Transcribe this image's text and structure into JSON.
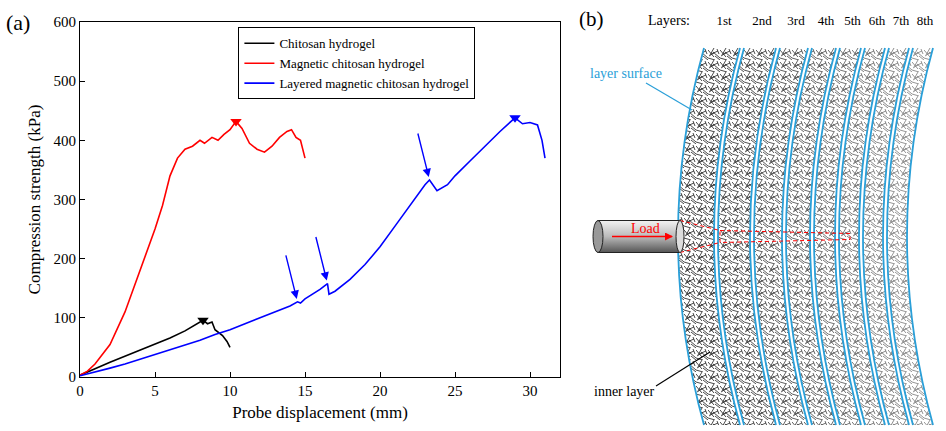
{
  "chart_data": {
    "type": "line",
    "panel_label": "(a)",
    "x_label": "Probe displacement (mm)",
    "y_label": "Compression strength (kPa)",
    "xlim": [
      0,
      32
    ],
    "xticks": [
      0,
      5,
      10,
      15,
      20,
      25,
      30
    ],
    "ylim": [
      0,
      600
    ],
    "yticks": [
      0,
      100,
      200,
      300,
      400,
      500,
      600
    ],
    "grid": false,
    "legend": "upper center",
    "series": [
      {
        "name": "Chitosan hydrogel",
        "color": "#000000",
        "marker": "triangle-down",
        "peak": [
          8.2,
          96
        ],
        "x": [
          0,
          0.5,
          1,
          2,
          3,
          4,
          5,
          6,
          7,
          7.5,
          8,
          8.2,
          8.5,
          8.8,
          9,
          9.5,
          9.8,
          10
        ],
        "values": [
          3,
          8,
          14,
          25,
          35,
          45,
          55,
          66,
          78,
          85,
          92,
          96,
          90,
          93,
          80,
          70,
          60,
          50
        ]
      },
      {
        "name": "Magnetic chitosan hydrogel",
        "color": "#ff0000",
        "marker": "triangle-down",
        "peak": [
          10.4,
          432
        ],
        "x": [
          0,
          0.5,
          1,
          2,
          3,
          4,
          5,
          5.5,
          6,
          6.5,
          7,
          7.5,
          8,
          8.3,
          8.8,
          9.2,
          9.6,
          10,
          10.4,
          10.8,
          11.3,
          11.8,
          12.3,
          12.8,
          13.3,
          13.8,
          14.1,
          14.4,
          14.7,
          15
        ],
        "values": [
          3,
          10,
          22,
          55,
          110,
          180,
          250,
          290,
          340,
          370,
          385,
          390,
          400,
          395,
          405,
          400,
          410,
          418,
          432,
          420,
          395,
          385,
          380,
          390,
          405,
          415,
          418,
          405,
          400,
          370
        ]
      },
      {
        "name": "Layered magnetic chitosan hydrogel",
        "color": "#0000ff",
        "marker": "triangle-down",
        "peak": [
          29,
          438
        ],
        "arrows_at": [
          [
            14.5,
            127
          ],
          [
            16.5,
            158
          ],
          [
            23.3,
            333
          ]
        ],
        "x": [
          0,
          1,
          2,
          3,
          4,
          5,
          6,
          7,
          8,
          9,
          10,
          11,
          12,
          13,
          14,
          14.5,
          14.7,
          15,
          16,
          16.5,
          16.6,
          17,
          18,
          19,
          20,
          21,
          22,
          23,
          23.3,
          23.8,
          24.5,
          25,
          26,
          27,
          28,
          29,
          29.5,
          30,
          30.5,
          30.8,
          31
        ],
        "values": [
          2,
          8,
          15,
          22,
          30,
          38,
          46,
          54,
          62,
          72,
          80,
          90,
          100,
          110,
          120,
          127,
          125,
          132,
          148,
          158,
          140,
          145,
          165,
          190,
          220,
          255,
          290,
          325,
          333,
          315,
          325,
          340,
          365,
          390,
          415,
          438,
          428,
          430,
          426,
          400,
          370
        ]
      }
    ]
  },
  "diagram": {
    "panel_label": "(b)",
    "layers_title": "Layers:",
    "layers": [
      "1st",
      "2nd",
      "3rd",
      "4th",
      "5th",
      "6th",
      "7th",
      "8th"
    ],
    "layer_surface_label": "layer surface",
    "inner_layer_label": "inner layer",
    "load_label": "Load"
  }
}
